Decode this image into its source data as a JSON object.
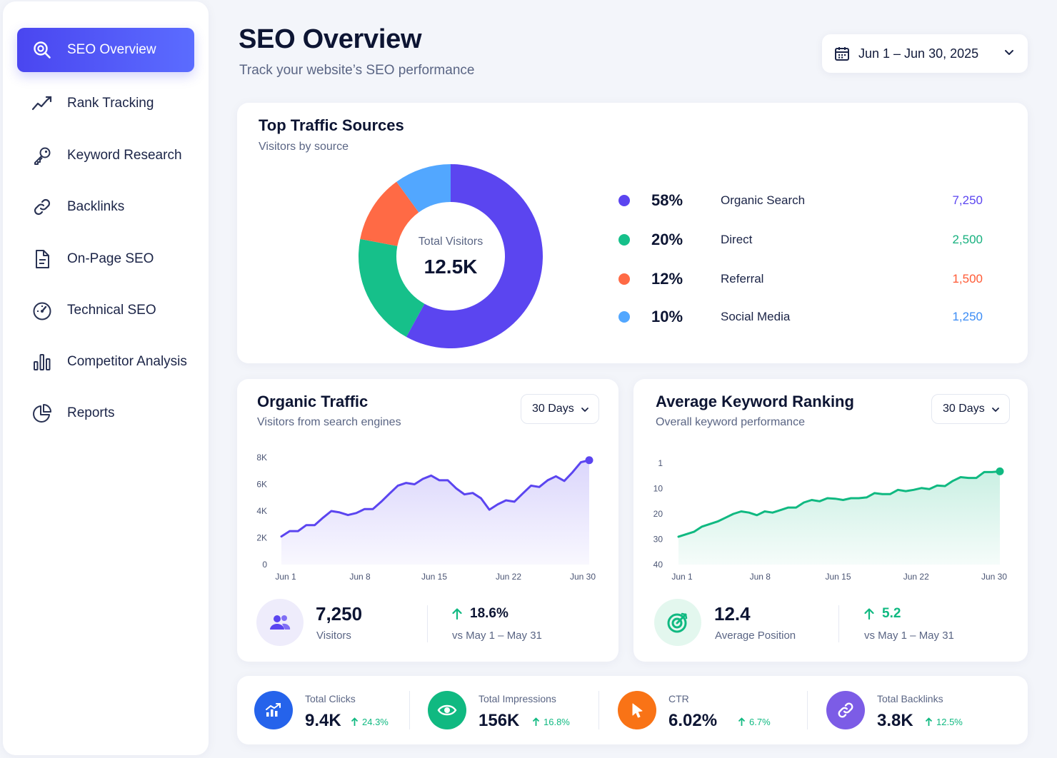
{
  "sidebar": {
    "items": [
      {
        "label": "SEO Overview",
        "icon": "search-chart-icon",
        "active": true
      },
      {
        "label": "Rank Tracking",
        "icon": "trend-line-icon"
      },
      {
        "label": "Keyword Research",
        "icon": "key-icon"
      },
      {
        "label": "Backlinks",
        "icon": "link-icon"
      },
      {
        "label": "On-Page SEO",
        "icon": "document-icon"
      },
      {
        "label": "Technical SEO",
        "icon": "gauge-icon"
      },
      {
        "label": "Competitor Analysis",
        "icon": "bar-chart-icon"
      },
      {
        "label": "Reports",
        "icon": "pie-chart-icon"
      }
    ]
  },
  "header": {
    "title": "SEO Overview",
    "subtitle": "Track your website’s SEO performance",
    "date_range": "Jun 1 – Jun 30, 2025"
  },
  "traffic_sources": {
    "title": "Top Traffic Sources",
    "subtitle": "Visitors by source",
    "center_label": "Total Visitors",
    "center_value": "12.5K",
    "items": [
      {
        "pct": "58%",
        "label": "Organic Search",
        "value": "7,250",
        "color": "#5b45f0"
      },
      {
        "pct": "20%",
        "label": "Direct",
        "value": "2,500",
        "color": "#16c08a"
      },
      {
        "pct": "12%",
        "label": "Referral",
        "value": "1,500",
        "color": "#ff6a45"
      },
      {
        "pct": "10%",
        "label": "Social Media",
        "value": "1,250",
        "color": "#52a7ff"
      }
    ]
  },
  "organic_traffic": {
    "title": "Organic Traffic",
    "subtitle": "Visitors from search engines",
    "range": "30 Days",
    "value": "7,250",
    "value_label": "Visitors",
    "change": "18.6%",
    "change_label": "vs May 1 – May 31"
  },
  "keyword_ranking": {
    "title": "Average Keyword Ranking",
    "subtitle": "Overall keyword performance",
    "range": "30 Days",
    "value": "12.4",
    "value_label": "Average Position",
    "change": "5.2",
    "change_label": "vs May 1 – May 31"
  },
  "kpis": [
    {
      "label": "Total Clicks",
      "value": "9.4K",
      "change": "24.3%",
      "icon": "chart-up-icon",
      "color": "#2563eb"
    },
    {
      "label": "Total Impressions",
      "value": "156K",
      "change": "16.8%",
      "icon": "eye-icon",
      "color": "#10b981"
    },
    {
      "label": "CTR",
      "value": "6.02%",
      "change": "6.7%",
      "icon": "cursor-icon",
      "color": "#f97316"
    },
    {
      "label": "Total Backlinks",
      "value": "3.8K",
      "change": "12.5%",
      "icon": "link-icon",
      "color": "#7c5ce6"
    }
  ],
  "chart_data": [
    {
      "type": "pie",
      "title": "Top Traffic Sources",
      "categories": [
        "Organic Search",
        "Direct",
        "Referral",
        "Social Media"
      ],
      "values": [
        58,
        20,
        12,
        10
      ],
      "colors": [
        "#5b45f0",
        "#16c08a",
        "#ff6a45",
        "#52a7ff"
      ]
    },
    {
      "type": "area",
      "title": "Organic Traffic",
      "x_ticks": [
        "Jun 1",
        "Jun 8",
        "Jun 15",
        "Jun 22",
        "Jun 30"
      ],
      "y_ticks": [
        "0",
        "2K",
        "4K",
        "6K",
        "8K"
      ],
      "ylim": [
        0,
        8000
      ],
      "color": "#5b45f0",
      "series": [
        {
          "values": [
            2100,
            2500,
            2500,
            2950,
            2950,
            3500,
            4000,
            3900,
            3700,
            3850,
            4150,
            4150,
            4700,
            5300,
            5900,
            6100,
            6000,
            6400,
            6650,
            6300,
            6300,
            5700,
            5250,
            5350,
            4950,
            4100,
            4500,
            4800,
            4700,
            5300,
            5900,
            5800,
            6300,
            6600,
            6250,
            6900,
            7650,
            7800
          ]
        }
      ]
    },
    {
      "type": "area",
      "title": "Average Keyword Ranking",
      "x_ticks": [
        "Jun 1",
        "Jun 8",
        "Jun 15",
        "Jun 22",
        "Jun 30"
      ],
      "y_ticks": [
        "1",
        "10",
        "20",
        "30",
        "40"
      ],
      "ylim": [
        40,
        1
      ],
      "color": "#10b981",
      "series": [
        {
          "values": [
            29,
            28,
            27,
            25,
            24,
            23,
            21.5,
            20,
            19,
            19.5,
            20.5,
            19,
            19.5,
            18.5,
            17.5,
            17.5,
            15.5,
            14.5,
            15,
            13.8,
            14,
            14.5,
            13.8,
            13.8,
            13.5,
            11.8,
            12.2,
            12.2,
            10.5,
            11,
            10.5,
            9.8,
            10.2,
            8.8,
            9,
            7,
            5.5,
            5.8,
            5.8,
            3.5,
            3.5,
            3.2
          ]
        }
      ]
    }
  ]
}
